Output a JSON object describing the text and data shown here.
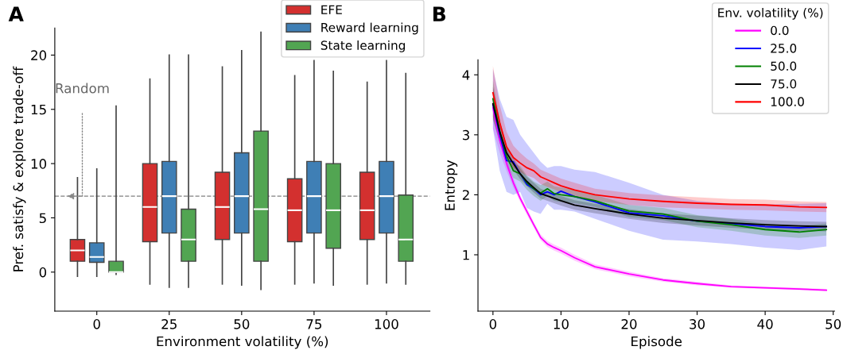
{
  "chart_data": [
    {
      "type": "box",
      "categories": [
        "0",
        "25",
        "50",
        "75",
        "100"
      ],
      "xlabel": "Environment volatility (%)",
      "ylabel": "Pref. satisfy & explore trade-off",
      "ylim": [
        -3.6,
        22.5
      ],
      "yticks": [
        0,
        5,
        10,
        15,
        20
      ],
      "legend": "top right",
      "grid": false,
      "series": [
        {
          "name": "EFE",
          "color": "#d3302f",
          "boxes": [
            {
              "low": -0.4,
              "q1": 1,
              "median": 2,
              "q3": 3,
              "high": 8.7
            },
            {
              "low": -1.1,
              "q1": 2.8,
              "median": 6,
              "q3": 10,
              "high": 17.8
            },
            {
              "low": -1.1,
              "q1": 3,
              "median": 6,
              "q3": 9.2,
              "high": 18.9
            },
            {
              "low": -1.1,
              "q1": 2.8,
              "median": 5.7,
              "q3": 8.6,
              "high": 18.1
            },
            {
              "low": -1.1,
              "q1": 3,
              "median": 5.7,
              "q3": 9.2,
              "high": 17.5
            }
          ]
        },
        {
          "name": "Reward learning",
          "color": "#3f7fb5",
          "boxes": [
            {
              "low": -0.4,
              "q1": 0.9,
              "median": 1.4,
              "q3": 2.7,
              "high": 9.5
            },
            {
              "low": -1.4,
              "q1": 3.6,
              "median": 7,
              "q3": 10.2,
              "high": 20
            },
            {
              "low": -1.2,
              "q1": 3.6,
              "median": 7,
              "q3": 11,
              "high": 20.4
            },
            {
              "low": -1,
              "q1": 3.6,
              "median": 7,
              "q3": 10.2,
              "high": 19.5
            },
            {
              "low": -1,
              "q1": 3.6,
              "median": 7,
              "q3": 10.2,
              "high": 19.5
            }
          ]
        },
        {
          "name": "State learning",
          "color": "#52a552",
          "boxes": [
            {
              "low": -0.2,
              "q1": 0,
              "median": 0,
              "q3": 1,
              "high": 15.3
            },
            {
              "low": -1.4,
              "q1": 1,
              "median": 3,
              "q3": 5.8,
              "high": 20
            },
            {
              "low": -1.6,
              "q1": 1,
              "median": 5.8,
              "q3": 13,
              "high": 22.1
            },
            {
              "low": -1.2,
              "q1": 2.2,
              "median": 5.7,
              "q3": 10,
              "high": 18.5
            },
            {
              "low": -1.1,
              "q1": 1,
              "median": 3,
              "q3": 7.1,
              "high": 18.3
            }
          ]
        }
      ],
      "ref_lines": [
        {
          "axis": "y",
          "value": 7,
          "color": "#808080",
          "line_style": "dashed"
        }
      ],
      "annotations": [
        "A",
        "Random"
      ]
    },
    {
      "type": "line",
      "xlabel": "Episode",
      "ylabel": "Entropy",
      "xlim": [
        -2.2,
        50.2
      ],
      "ylim": [
        0.06,
        4.25
      ],
      "xticks": [
        0,
        10,
        20,
        30,
        40,
        50
      ],
      "yticks": [
        1,
        2,
        3,
        4
      ],
      "legend": "top right",
      "legend_title": "Env. volatility (%)",
      "grid": false,
      "x": [
        0,
        1,
        2,
        3,
        4,
        5,
        6,
        7,
        8,
        9,
        10,
        12,
        15,
        20,
        25,
        30,
        35,
        40,
        45,
        49
      ],
      "series": [
        {
          "name": "0.0",
          "color": "#ff00ff",
          "values": [
            3.45,
            2.91,
            2.52,
            2.2,
            1.94,
            1.72,
            1.5,
            1.29,
            1.18,
            1.12,
            1.07,
            0.95,
            0.8,
            0.68,
            0.58,
            0.52,
            0.47,
            0.45,
            0.43,
            0.41
          ],
          "lower": [
            3.1,
            2.7,
            2.4,
            2.12,
            1.88,
            1.66,
            1.45,
            1.24,
            1.13,
            1.07,
            1.02,
            0.9,
            0.76,
            0.64,
            0.55,
            0.49,
            0.45,
            0.43,
            0.41,
            0.39
          ],
          "upper": [
            3.8,
            3.12,
            2.64,
            2.28,
            2.0,
            1.78,
            1.55,
            1.34,
            1.23,
            1.17,
            1.12,
            1.0,
            0.84,
            0.72,
            0.61,
            0.55,
            0.49,
            0.47,
            0.45,
            0.43
          ]
        },
        {
          "name": "25.0",
          "color": "#0000ff",
          "values": [
            3.5,
            3.0,
            2.57,
            2.55,
            2.35,
            2.17,
            2.1,
            2.0,
            2.05,
            2.0,
            2.06,
            1.97,
            1.88,
            1.7,
            1.65,
            1.56,
            1.52,
            1.47,
            1.45,
            1.47
          ],
          "lower": [
            3.1,
            2.4,
            2.05,
            2.0,
            2.05,
            1.78,
            1.72,
            1.68,
            1.85,
            1.75,
            1.75,
            1.72,
            1.6,
            1.4,
            1.25,
            1.22,
            1.18,
            1.12,
            1.08,
            1.14
          ],
          "upper": [
            4.1,
            3.6,
            3.3,
            3.25,
            3.0,
            2.85,
            2.7,
            2.55,
            2.45,
            2.48,
            2.48,
            2.42,
            2.38,
            2.2,
            2.0,
            1.9,
            1.85,
            1.84,
            1.85,
            1.86
          ]
        },
        {
          "name": "50.0",
          "color": "#008000",
          "values": [
            3.6,
            3.05,
            2.65,
            2.4,
            2.35,
            2.2,
            2.1,
            2.03,
            2.1,
            2.02,
            2.0,
            1.97,
            1.9,
            1.73,
            1.68,
            1.56,
            1.5,
            1.42,
            1.38,
            1.42
          ],
          "lower": [
            3.3,
            2.85,
            2.5,
            2.28,
            2.22,
            2.08,
            1.98,
            1.9,
            1.98,
            1.9,
            1.88,
            1.86,
            1.8,
            1.63,
            1.58,
            1.46,
            1.4,
            1.32,
            1.28,
            1.32
          ],
          "upper": [
            3.9,
            3.25,
            2.8,
            2.52,
            2.48,
            2.32,
            2.22,
            2.16,
            2.22,
            2.14,
            2.12,
            2.08,
            2.0,
            1.83,
            1.78,
            1.66,
            1.6,
            1.52,
            1.48,
            1.52
          ]
        },
        {
          "name": "75.0",
          "color": "#000000",
          "values": [
            3.52,
            3.05,
            2.7,
            2.52,
            2.35,
            2.22,
            2.12,
            2.02,
            1.98,
            1.94,
            1.9,
            1.83,
            1.77,
            1.68,
            1.61,
            1.57,
            1.53,
            1.5,
            1.48,
            1.47
          ],
          "lower": [
            3.25,
            2.87,
            2.58,
            2.42,
            2.26,
            2.14,
            2.04,
            1.94,
            1.9,
            1.86,
            1.82,
            1.75,
            1.69,
            1.6,
            1.53,
            1.49,
            1.45,
            1.42,
            1.4,
            1.39
          ],
          "upper": [
            3.8,
            3.23,
            2.82,
            2.62,
            2.44,
            2.3,
            2.2,
            2.1,
            2.06,
            2.02,
            1.98,
            1.91,
            1.85,
            1.76,
            1.69,
            1.65,
            1.61,
            1.58,
            1.56,
            1.55
          ]
        },
        {
          "name": "100.0",
          "color": "#ff0000",
          "values": [
            3.7,
            3.2,
            2.8,
            2.62,
            2.53,
            2.45,
            2.4,
            2.3,
            2.25,
            2.2,
            2.15,
            2.08,
            2.0,
            1.93,
            1.89,
            1.86,
            1.84,
            1.83,
            1.8,
            1.79
          ],
          "lower": [
            3.3,
            2.95,
            2.6,
            2.45,
            2.38,
            2.32,
            2.28,
            2.18,
            2.13,
            2.09,
            2.04,
            1.97,
            1.9,
            1.83,
            1.79,
            1.77,
            1.75,
            1.74,
            1.72,
            1.71
          ],
          "upper": [
            4.15,
            3.5,
            3.05,
            2.82,
            2.7,
            2.6,
            2.52,
            2.42,
            2.37,
            2.32,
            2.27,
            2.2,
            2.1,
            2.03,
            1.99,
            1.96,
            1.93,
            1.92,
            1.89,
            1.88
          ]
        }
      ],
      "annotations": [
        "B"
      ]
    }
  ]
}
